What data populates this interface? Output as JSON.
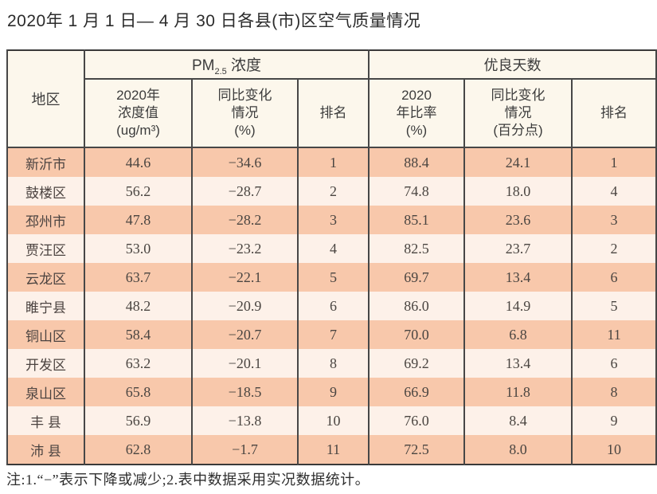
{
  "title": "2020年 1 月 1 日— 4 月 30 日各县(市)区空气质量情况",
  "footnote": "注:1.“−”表示下降或减少;2.表中数据采用实况数据统计。",
  "colors": {
    "row_odd_bg": "#f8c8ab",
    "row_even_bg": "#fdf1e9",
    "header_bg": "#fcf7ec",
    "border": "#474747",
    "text": "#4a4541"
  },
  "chart_data": {
    "type": "table",
    "title": "2020年 1 月 1 日— 4 月 30 日各县(市)区空气质量情况",
    "header": {
      "region": "地区",
      "pm_group": {
        "prefix": "PM",
        "sub": "2.5",
        "suffix": " 浓度"
      },
      "good_group": "优良天数",
      "pm_value_lines": [
        "2020年",
        "浓度值",
        "(ug/m³)"
      ],
      "pm_change_lines": [
        "同比变化",
        "情况",
        "(%)"
      ],
      "pm_rank": "排名",
      "good_ratio_lines": [
        "2020",
        "年比率",
        "(%)"
      ],
      "good_change_lines": [
        "同比变化",
        "情况",
        "(百分点)"
      ],
      "good_rank": "排名"
    },
    "rows": [
      {
        "region": "新沂市",
        "pm_value": "44.6",
        "pm_change": "−34.6",
        "pm_rank": "1",
        "good_ratio": "88.4",
        "good_change": "24.1",
        "good_rank": "1"
      },
      {
        "region": "鼓楼区",
        "pm_value": "56.2",
        "pm_change": "−28.7",
        "pm_rank": "2",
        "good_ratio": "74.8",
        "good_change": "18.0",
        "good_rank": "4"
      },
      {
        "region": "邳州市",
        "pm_value": "47.8",
        "pm_change": "−28.2",
        "pm_rank": "3",
        "good_ratio": "85.1",
        "good_change": "23.6",
        "good_rank": "3"
      },
      {
        "region": "贾汪区",
        "pm_value": "53.0",
        "pm_change": "−23.2",
        "pm_rank": "4",
        "good_ratio": "82.5",
        "good_change": "23.7",
        "good_rank": "2"
      },
      {
        "region": "云龙区",
        "pm_value": "63.7",
        "pm_change": "−22.1",
        "pm_rank": "5",
        "good_ratio": "69.7",
        "good_change": "13.4",
        "good_rank": "6"
      },
      {
        "region": "睢宁县",
        "pm_value": "48.2",
        "pm_change": "−20.9",
        "pm_rank": "6",
        "good_ratio": "86.0",
        "good_change": "14.9",
        "good_rank": "5"
      },
      {
        "region": "铜山区",
        "pm_value": "58.4",
        "pm_change": "−20.7",
        "pm_rank": "7",
        "good_ratio": "70.0",
        "good_change": "6.8",
        "good_rank": "11"
      },
      {
        "region": "开发区",
        "pm_value": "63.2",
        "pm_change": "−20.1",
        "pm_rank": "8",
        "good_ratio": "69.2",
        "good_change": "13.4",
        "good_rank": "6"
      },
      {
        "region": "泉山区",
        "pm_value": "65.8",
        "pm_change": "−18.5",
        "pm_rank": "9",
        "good_ratio": "66.9",
        "good_change": "11.8",
        "good_rank": "8"
      },
      {
        "region": "丰 县",
        "pm_value": "56.9",
        "pm_change": "−13.8",
        "pm_rank": "10",
        "good_ratio": "76.0",
        "good_change": "8.4",
        "good_rank": "9"
      },
      {
        "region": "沛 县",
        "pm_value": "62.8",
        "pm_change": "−1.7",
        "pm_rank": "11",
        "good_ratio": "72.5",
        "good_change": "8.0",
        "good_rank": "10"
      }
    ]
  }
}
